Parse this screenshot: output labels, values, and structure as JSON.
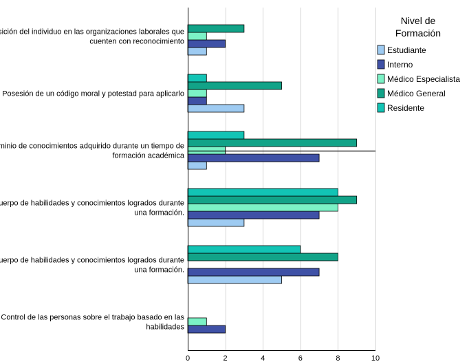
{
  "chart_data": {
    "type": "bar",
    "orientation": "horizontal",
    "categories": [
      [
        "Posición del individuo en las organizaciones laborales que",
        "cuenten con reconocimiento"
      ],
      [
        "Posesión de un código moral y potestad para aplicarlo"
      ],
      [
        "Dominio de conocimientos adquirido durante un tiempo de",
        "formación académica"
      ],
      [
        "Cuerpo de habilidades y conocimientos logrados durante",
        "una formación."
      ],
      [
        "cuerpo de habilidades y conocimientos logrados durante",
        "una formación."
      ],
      [
        "Control de las personas sobre el trabajo basado en las",
        "habilidades"
      ]
    ],
    "series": [
      {
        "name": "Estudiante",
        "color": "#9ECBF2",
        "values": [
          1,
          3,
          1,
          3,
          5,
          0
        ]
      },
      {
        "name": "Interno",
        "color": "#3F51A6",
        "values": [
          2,
          1,
          7,
          7,
          7,
          2
        ]
      },
      {
        "name": "Médico Especialista",
        "color": "#7CF2C6",
        "values": [
          1,
          1,
          2,
          8,
          0,
          1
        ]
      },
      {
        "name": "Médico General",
        "color": "#12A388",
        "values": [
          3,
          5,
          9,
          9,
          8,
          0
        ]
      },
      {
        "name": "Residente",
        "color": "#12C4B5",
        "values": [
          0,
          1,
          3,
          8,
          6,
          0
        ]
      }
    ],
    "xlim": [
      0,
      10
    ],
    "xticks": [
      0,
      2,
      4,
      6,
      8,
      10
    ],
    "xlabel": "",
    "ylabel": "",
    "grid": true,
    "legend": {
      "title_lines": [
        "Nivel de",
        "Formación"
      ],
      "placement": "top-right"
    },
    "reference_line_category": 2
  }
}
